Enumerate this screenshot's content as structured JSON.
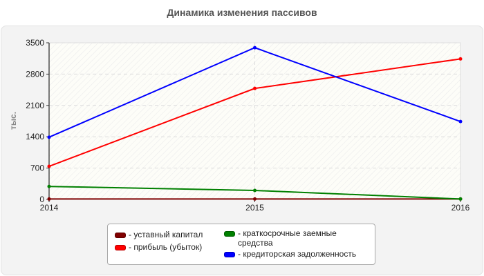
{
  "title": "Динамика изменения пассивов",
  "y_axis_label": "тыс.",
  "legend": {
    "items": [
      {
        "label": "- уставный капитал",
        "color": "#800000"
      },
      {
        "label": "- прибыль (убыток)",
        "color": "#ff0000"
      },
      {
        "label": "- краткосрочные заемные средства",
        "color": "#008000"
      },
      {
        "label": "- кредиторская задолженность",
        "color": "#0000ff"
      }
    ]
  },
  "chart_data": {
    "type": "line",
    "title": "Динамика изменения пассивов",
    "xlabel": "",
    "ylabel": "тыс.",
    "x": [
      "2014",
      "2015",
      "2016"
    ],
    "y_ticks": [
      0,
      700,
      1400,
      2100,
      2800,
      3500
    ],
    "ylim": [
      0,
      3500
    ],
    "grid": true,
    "legend_position": "bottom",
    "series": [
      {
        "name": "уставный капитал",
        "color": "#800000",
        "values": [
          10,
          10,
          10
        ]
      },
      {
        "name": "прибыль (убыток)",
        "color": "#ff0000",
        "values": [
          740,
          2480,
          3140
        ]
      },
      {
        "name": "краткосрочные заемные средства",
        "color": "#008000",
        "values": [
          290,
          200,
          10
        ]
      },
      {
        "name": "кредиторская задолженность",
        "color": "#0000ff",
        "values": [
          1390,
          3390,
          1740
        ]
      }
    ]
  }
}
